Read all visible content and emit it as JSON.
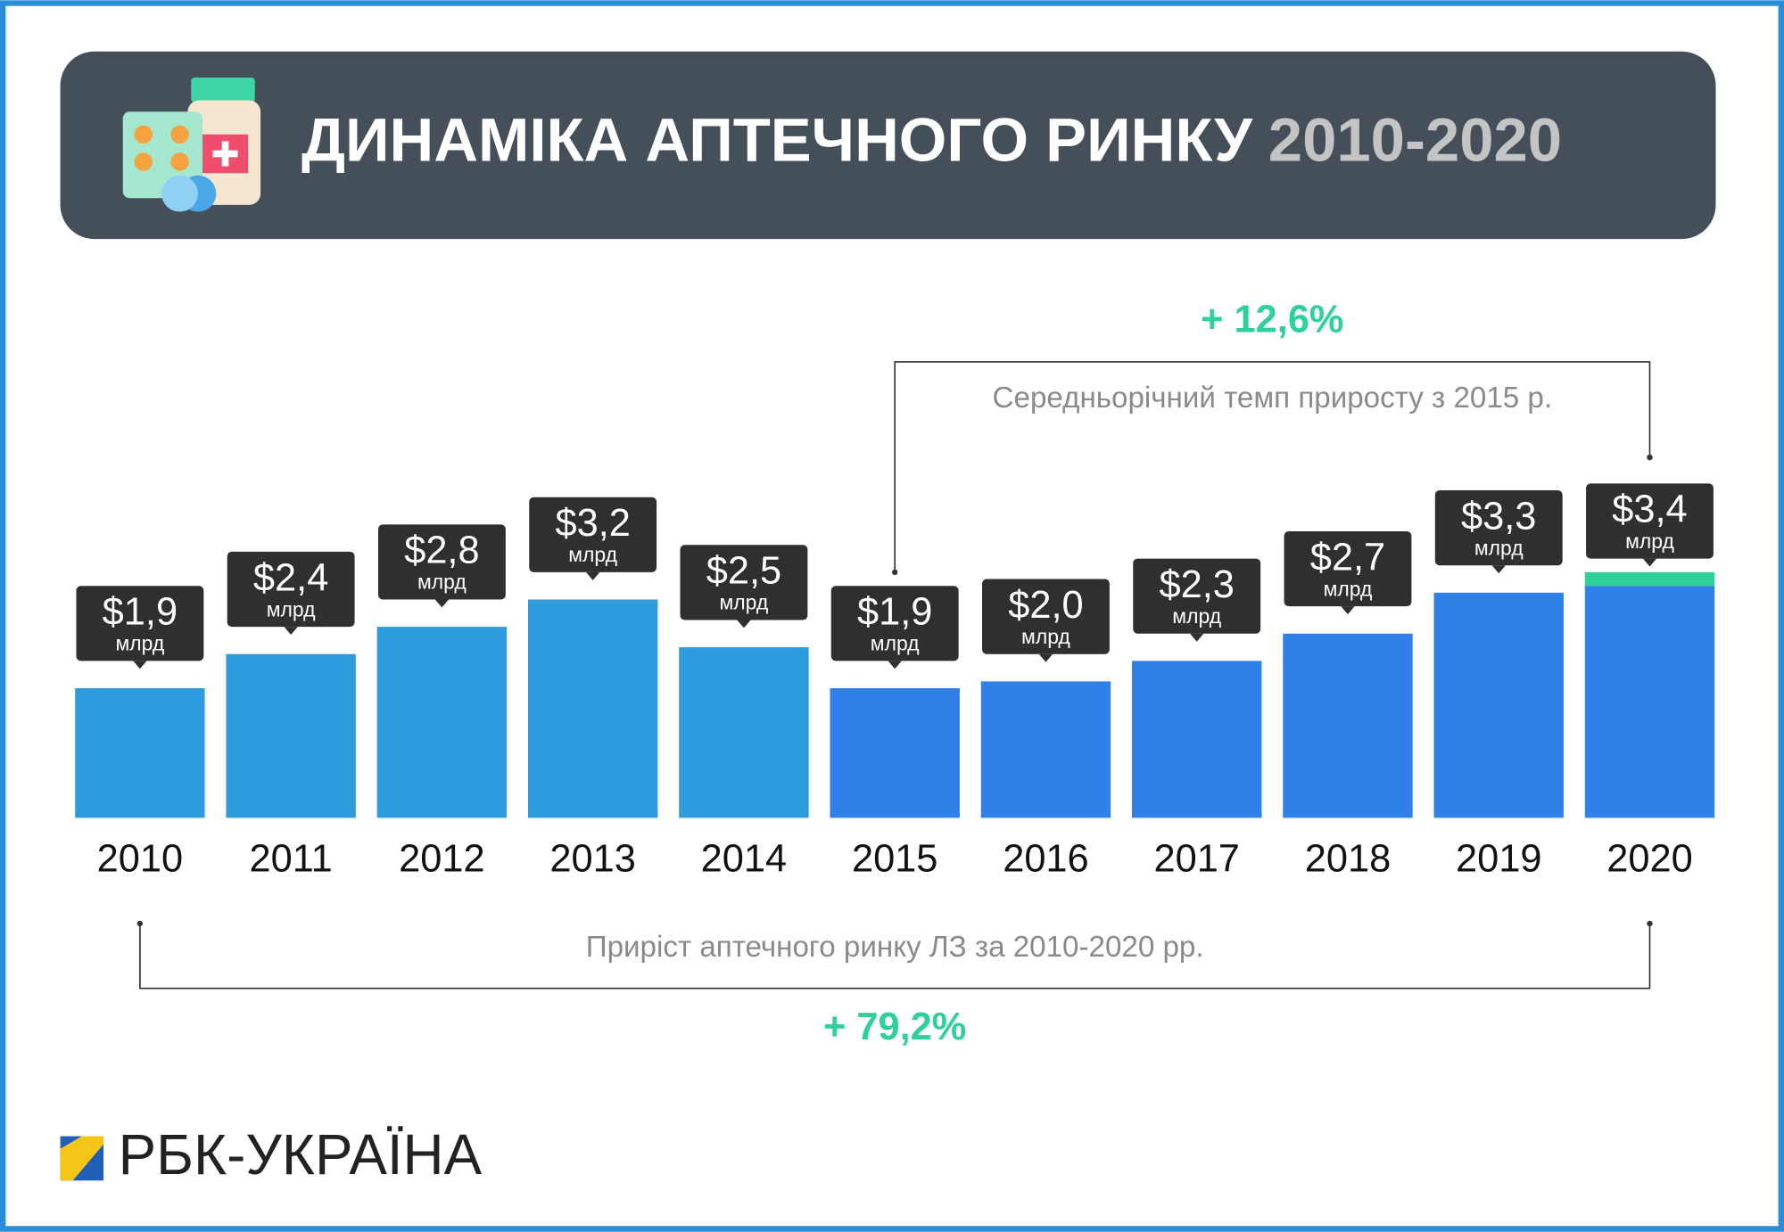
{
  "chart_data": {
    "type": "bar",
    "title": "ДИНАМІКА АПТЕЧНОГО РИНКУ",
    "title_years": "2010-2020",
    "categories": [
      "2010",
      "2011",
      "2012",
      "2013",
      "2014",
      "2015",
      "2016",
      "2017",
      "2018",
      "2019",
      "2020"
    ],
    "values": [
      1.9,
      2.4,
      2.8,
      3.2,
      2.5,
      1.9,
      2.0,
      2.3,
      2.7,
      3.3,
      3.4
    ],
    "value_labels": [
      "$1,9",
      "$2,4",
      "$2,8",
      "$3,2",
      "$2,5",
      "$1,9",
      "$2,0",
      "$2,3",
      "$2,7",
      "$3,3",
      "$3,4"
    ],
    "value_unit": "млрд",
    "colors": [
      "#2d9bdc",
      "#2d9bdc",
      "#2d9bdc",
      "#2d9bdc",
      "#2d9bdc",
      "#2f80e8",
      "#2f80e8",
      "#2f80e8",
      "#2f80e8",
      "#2f80e8",
      "#2f80e8"
    ],
    "highlight_color": "#2fd19a",
    "annotations": [
      {
        "label": "+ 12,6%",
        "text": "Середньорічний темп приросту з 2015 р."
      },
      {
        "label": "+ 79,2%",
        "text": "Приріст аптечного ринку ЛЗ за 2010-2020 рр."
      }
    ],
    "source": "РБК-УКРАЇНА"
  }
}
